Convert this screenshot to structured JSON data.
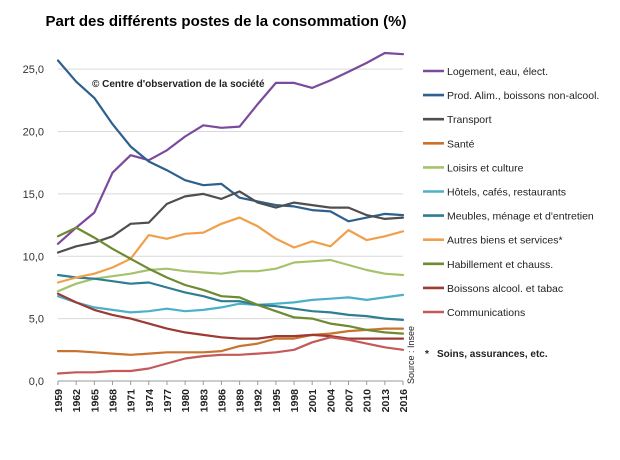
{
  "chart_data": {
    "type": "line",
    "title": "Part des différents postes de la consommation (%)",
    "copyright": "© Centre d'observation de la société",
    "source": "Source : Insee",
    "footnote": "Soins, assurances, etc.",
    "footnote_marker": "*",
    "ylim": [
      0,
      27.5
    ],
    "y_ticks": [
      "0,0",
      "5,0",
      "10,0",
      "15,0",
      "20,0",
      "25,0"
    ],
    "y_tick_values": [
      0,
      5,
      10,
      15,
      20,
      25
    ],
    "x_ticks": [
      "1959",
      "1962",
      "1965",
      "1968",
      "1971",
      "1974",
      "1977",
      "1980",
      "1983",
      "1986",
      "1989",
      "1992",
      "1995",
      "1998",
      "2001",
      "2004",
      "2007",
      "2010",
      "2013",
      "2016"
    ],
    "x_tick_values": [
      1959,
      1962,
      1965,
      1968,
      1971,
      1974,
      1977,
      1980,
      1983,
      1986,
      1989,
      1992,
      1995,
      1998,
      2001,
      2004,
      2007,
      2010,
      2013,
      2016
    ],
    "grid": true,
    "legend_position": "right",
    "x": [
      1959,
      1962,
      1965,
      1968,
      1971,
      1974,
      1977,
      1980,
      1983,
      1986,
      1989,
      1992,
      1995,
      1998,
      2001,
      2004,
      2007,
      2010,
      2013,
      2016
    ],
    "series": [
      {
        "name": "Logement, eau, élect.",
        "color": "#7b4a9c",
        "values": [
          11.0,
          12.3,
          13.5,
          16.7,
          18.1,
          17.7,
          18.5,
          19.6,
          20.5,
          20.3,
          20.4,
          22.2,
          23.9,
          23.9,
          23.5,
          24.1,
          24.8,
          25.5,
          26.3,
          26.2
        ]
      },
      {
        "name": "Prod. Alim., boissons non-alcool.",
        "color": "#2e5f8e",
        "values": [
          25.7,
          24.0,
          22.7,
          20.6,
          18.8,
          17.6,
          16.9,
          16.1,
          15.7,
          15.8,
          14.7,
          14.4,
          14.1,
          14.0,
          13.7,
          13.6,
          12.8,
          13.1,
          13.4,
          13.3
        ]
      },
      {
        "name": "Transport",
        "color": "#4f4f4f",
        "values": [
          10.3,
          10.8,
          11.1,
          11.6,
          12.6,
          12.7,
          14.2,
          14.8,
          15.0,
          14.6,
          15.2,
          14.3,
          13.9,
          14.3,
          14.1,
          13.9,
          13.9,
          13.3,
          13.0,
          13.1
        ]
      },
      {
        "name": "Santé",
        "color": "#c9732e",
        "values": [
          2.4,
          2.4,
          2.3,
          2.2,
          2.1,
          2.2,
          2.3,
          2.3,
          2.3,
          2.4,
          2.8,
          3.0,
          3.4,
          3.4,
          3.7,
          3.8,
          4.0,
          4.1,
          4.2,
          4.2
        ]
      },
      {
        "name": "Loisirs et culture",
        "color": "#a6c36c",
        "values": [
          7.2,
          7.8,
          8.2,
          8.4,
          8.6,
          8.9,
          9.0,
          8.8,
          8.7,
          8.6,
          8.8,
          8.8,
          9.0,
          9.5,
          9.6,
          9.7,
          9.3,
          8.9,
          8.6,
          8.5
        ]
      },
      {
        "name": "Hôtels, cafés, restaurants",
        "color": "#4bb0c8",
        "values": [
          6.8,
          6.3,
          5.9,
          5.7,
          5.5,
          5.6,
          5.8,
          5.6,
          5.7,
          5.9,
          6.2,
          6.1,
          6.2,
          6.3,
          6.5,
          6.6,
          6.7,
          6.5,
          6.7,
          6.9
        ]
      },
      {
        "name": "Meubles, ménage et d'entretien",
        "color": "#2f7d93",
        "values": [
          8.5,
          8.3,
          8.2,
          8.0,
          7.8,
          7.9,
          7.5,
          7.1,
          6.8,
          6.4,
          6.4,
          6.1,
          6.0,
          5.8,
          5.6,
          5.5,
          5.3,
          5.2,
          5.0,
          4.9
        ]
      },
      {
        "name": "Autres biens et services*",
        "color": "#f0a04a",
        "values": [
          7.9,
          8.3,
          8.6,
          9.1,
          9.8,
          11.7,
          11.4,
          11.8,
          11.9,
          12.6,
          13.1,
          12.4,
          11.4,
          10.7,
          11.2,
          10.8,
          12.1,
          11.3,
          11.6,
          12.0
        ]
      },
      {
        "name": "Habillement et chauss.",
        "color": "#6e8a33",
        "values": [
          11.6,
          12.3,
          11.5,
          10.6,
          9.8,
          9.0,
          8.3,
          7.7,
          7.3,
          6.8,
          6.7,
          6.1,
          5.6,
          5.1,
          5.0,
          4.6,
          4.4,
          4.1,
          3.9,
          3.8
        ]
      },
      {
        "name": "Boissons alcool. et tabac",
        "color": "#9c3a33",
        "values": [
          7.0,
          6.3,
          5.7,
          5.3,
          5.0,
          4.6,
          4.2,
          3.9,
          3.7,
          3.5,
          3.4,
          3.4,
          3.6,
          3.6,
          3.7,
          3.6,
          3.4,
          3.4,
          3.4,
          3.4
        ]
      },
      {
        "name": "Communications",
        "color": "#c4595a",
        "values": [
          0.6,
          0.7,
          0.7,
          0.8,
          0.8,
          1.0,
          1.4,
          1.8,
          2.0,
          2.1,
          2.1,
          2.2,
          2.3,
          2.5,
          3.1,
          3.5,
          3.3,
          3.0,
          2.7,
          2.5
        ]
      }
    ]
  }
}
